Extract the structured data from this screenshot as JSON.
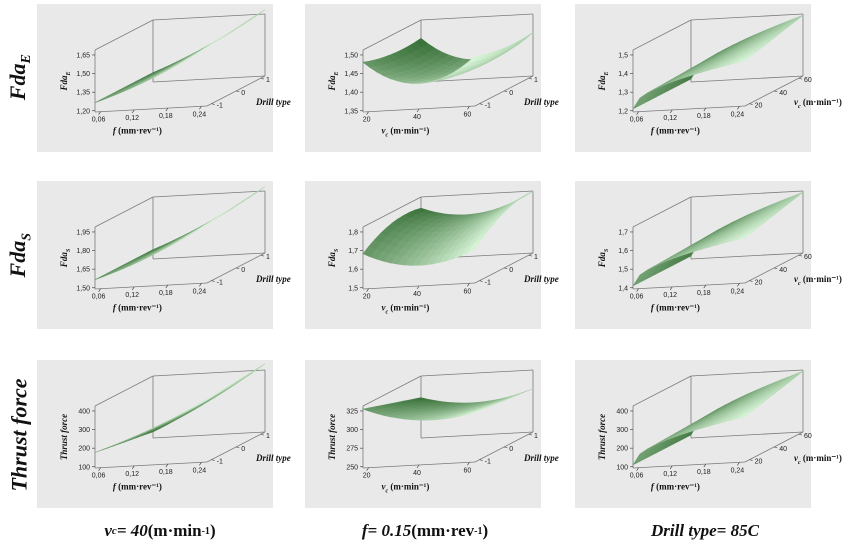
{
  "rows": [
    {
      "name": "Fda",
      "sub": "E"
    },
    {
      "name": "Fda",
      "sub": "S"
    },
    {
      "name": "Thrust force",
      "sub": ""
    }
  ],
  "columns": [
    {
      "var": "v",
      "var_sub": "c",
      "eq": " = 40 ",
      "unit": "(m·min",
      "unit_sup": "-1",
      "unit_end": ")"
    },
    {
      "var": "f",
      "var_sub": "",
      "eq": " = 0.15 ",
      "unit": "(mm·rev",
      "unit_sup": "-1",
      "unit_end": ")"
    },
    {
      "var": "Drill type",
      "var_sub": "",
      "eq": " = 85C",
      "unit": "",
      "unit_sup": "",
      "unit_end": ""
    }
  ],
  "colors": {
    "panel_bg": "#e9e9e9",
    "surface_dark": "#1e5a1e",
    "surface_light": "#d8f5d8",
    "edge": "#7a7a7a"
  },
  "chart_data": [
    {
      "type": "surface",
      "row": 0,
      "col": 0,
      "zlabel": "Fda_E",
      "zticks": [
        "1,20",
        "1,35",
        "1,50",
        "1,65"
      ],
      "xlabel": "f (mm·rev⁻¹)",
      "xticks": [
        "0,06",
        "0,12",
        "0,18",
        "0,24"
      ],
      "ylabel": "Drill type",
      "yticks": [
        "-1",
        "0",
        "1"
      ],
      "ylabel_italic": true,
      "shape": "rise_x"
    },
    {
      "type": "surface",
      "row": 0,
      "col": 1,
      "zlabel": "Fda_E",
      "zticks": [
        "1,35",
        "1,40",
        "1,45",
        "1,50"
      ],
      "xlabel": "v_c (m·min⁻¹)",
      "xticks": [
        "20",
        "40",
        "60"
      ],
      "ylabel": "Drill type",
      "yticks": [
        "-1",
        "0",
        "1"
      ],
      "ylabel_italic": true,
      "shape": "bowl"
    },
    {
      "type": "surface",
      "row": 0,
      "col": 2,
      "zlabel": "Fda_E",
      "zticks": [
        "1,2",
        "1,3",
        "1,4",
        "1,5"
      ],
      "xlabel": "f (mm·rev⁻¹)",
      "xticks": [
        "0,06",
        "0,12",
        "0,18",
        "0,24"
      ],
      "ylabel": "v_c (m·min⁻¹)",
      "yticks": [
        "20",
        "40",
        "60"
      ],
      "ylabel_italic": false,
      "shape": "concave_rise"
    },
    {
      "type": "surface",
      "row": 1,
      "col": 0,
      "zlabel": "Fda_S",
      "zticks": [
        "1,50",
        "1,65",
        "1,80",
        "1,95"
      ],
      "xlabel": "f (mm·rev⁻¹)",
      "xticks": [
        "0,06",
        "0,12",
        "0,18",
        "0,24"
      ],
      "ylabel": "Drill type",
      "yticks": [
        "-1",
        "0",
        "1"
      ],
      "ylabel_italic": true,
      "shape": "rise_x"
    },
    {
      "type": "surface",
      "row": 1,
      "col": 1,
      "zlabel": "Fda_S",
      "zticks": [
        "1,5",
        "1,6",
        "1,7",
        "1,8"
      ],
      "xlabel": "v_c (m·min⁻¹)",
      "xticks": [
        "20",
        "40",
        "60"
      ],
      "ylabel": "Drill type",
      "yticks": [
        "-1",
        "0",
        "1"
      ],
      "ylabel_italic": true,
      "shape": "saddle"
    },
    {
      "type": "surface",
      "row": 1,
      "col": 2,
      "zlabel": "Fda_S",
      "zticks": [
        "1,4",
        "1,5",
        "1,6",
        "1,7"
      ],
      "xlabel": "f (mm·rev⁻¹)",
      "xticks": [
        "0,06",
        "0,12",
        "0,18",
        "0,24"
      ],
      "ylabel": "v_c (m·min⁻¹)",
      "yticks": [
        "20",
        "40",
        "60"
      ],
      "ylabel_italic": false,
      "shape": "concave_rise"
    },
    {
      "type": "surface",
      "row": 2,
      "col": 0,
      "zlabel": "Thrust force",
      "zticks": [
        "100",
        "200",
        "300",
        "400"
      ],
      "xlabel": "f (mm·rev⁻¹)",
      "xticks": [
        "0,06",
        "0,12",
        "0,18",
        "0,24"
      ],
      "ylabel": "Drill type",
      "yticks": [
        "-1",
        "0",
        "1"
      ],
      "ylabel_italic": true,
      "shape": "twist_rise"
    },
    {
      "type": "surface",
      "row": 2,
      "col": 1,
      "zlabel": "Thrust force",
      "zticks": [
        "250",
        "275",
        "300",
        "325"
      ],
      "xlabel": "v_c (m·min⁻¹)",
      "xticks": [
        "20",
        "40",
        "60"
      ],
      "ylabel": "Drill type",
      "yticks": [
        "-1",
        "0",
        "1"
      ],
      "ylabel_italic": true,
      "shape": "valley"
    },
    {
      "type": "surface",
      "row": 2,
      "col": 2,
      "zlabel": "Thrust force",
      "zticks": [
        "100",
        "200",
        "300",
        "400"
      ],
      "xlabel": "f (mm·rev⁻¹)",
      "xticks": [
        "0,06",
        "0,12",
        "0,18",
        "0,24"
      ],
      "ylabel": "v_c (m·min⁻¹)",
      "yticks": [
        "20",
        "40",
        "60"
      ],
      "ylabel_italic": false,
      "shape": "concave_rise"
    }
  ]
}
